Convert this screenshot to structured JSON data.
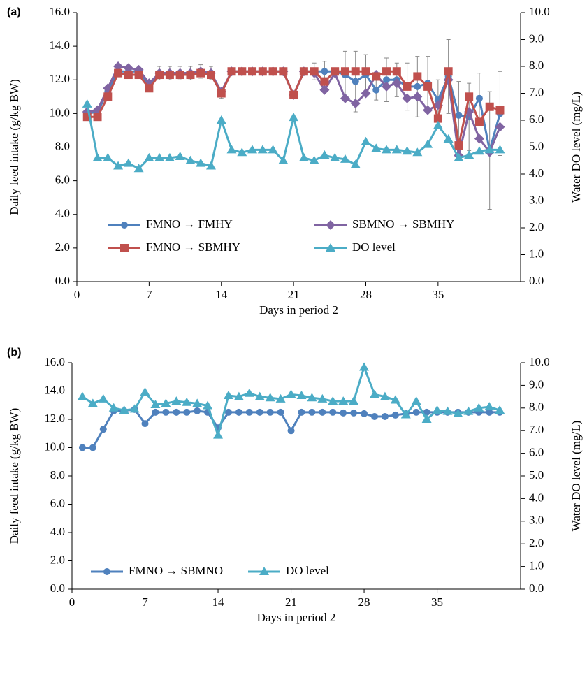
{
  "chart_data": [
    {
      "type": "line",
      "panel_label": "(a)",
      "x_label": "Days in period 2",
      "y_label": "Daily feed intake (g/kg BW)",
      "y2_label": "Water DO level (mg/L)",
      "x": [
        1,
        2,
        3,
        4,
        5,
        6,
        7,
        8,
        9,
        10,
        11,
        12,
        13,
        14,
        15,
        16,
        17,
        18,
        19,
        20,
        21,
        22,
        23,
        24,
        25,
        26,
        27,
        28,
        29,
        30,
        31,
        32,
        33,
        34,
        35,
        36,
        37,
        38,
        39,
        40,
        41
      ],
      "xlim": [
        0,
        43
      ],
      "xticks": [
        0,
        7,
        14,
        21,
        28,
        35
      ],
      "ylim": [
        0,
        16
      ],
      "yticks": [
        {
          "value": 0,
          "label": "0.0"
        },
        {
          "value": 2,
          "label": "2.0"
        },
        {
          "value": 4,
          "label": "4.0"
        },
        {
          "value": 6,
          "label": "6.0"
        },
        {
          "value": 8,
          "label": "8.0"
        },
        {
          "value": 10,
          "label": "10.0"
        },
        {
          "value": 12,
          "label": "12.0"
        },
        {
          "value": 14,
          "label": "14.0"
        },
        {
          "value": 16,
          "label": "16.0"
        }
      ],
      "y2lim": [
        0,
        10
      ],
      "y2ticks": [
        {
          "value": 0,
          "label": "0.0"
        },
        {
          "value": 1,
          "label": "1.0"
        },
        {
          "value": 2,
          "label": "2.0"
        },
        {
          "value": 3,
          "label": "3.0"
        },
        {
          "value": 4,
          "label": "4.0"
        },
        {
          "value": 5,
          "label": "5.0"
        },
        {
          "value": 6,
          "label": "6.0"
        },
        {
          "value": 7,
          "label": "7.0"
        },
        {
          "value": 8,
          "label": "8.0"
        },
        {
          "value": 9,
          "label": "9.0"
        },
        {
          "value": 10,
          "label": "10.0"
        }
      ],
      "series": [
        {
          "name": "FMNO → FMHY",
          "color": "#4f81bd",
          "marker": "circle",
          "values": [
            10.0,
            10.1,
            11.3,
            12.5,
            12.5,
            12.5,
            11.7,
            12.4,
            12.4,
            12.4,
            12.4,
            12.5,
            12.4,
            11.2,
            12.5,
            12.5,
            12.5,
            12.5,
            12.5,
            12.5,
            11.1,
            12.5,
            12.5,
            12.5,
            12.5,
            12.3,
            11.9,
            12.3,
            11.4,
            12.0,
            12.0,
            11.6,
            11.6,
            11.8,
            10.8,
            12.2,
            9.9,
            9.8,
            10.9,
            7.8,
            10.0
          ],
          "errors": [
            0.2,
            0.2,
            0.2,
            0.2,
            0.2,
            0.2,
            0.2,
            0.4,
            0.4,
            0.4,
            0.4,
            0.4,
            0.4,
            0.3,
            0.1,
            0.1,
            0.1,
            0.1,
            0.1,
            0.1,
            0.1,
            0.1,
            0.5,
            0.6,
            0.2,
            1.4,
            1.8,
            1.2,
            0.6,
            1.3,
            1.0,
            1.4,
            1.8,
            1.6,
            1.2,
            2.2,
            2.0,
            2.0,
            1.5,
            3.5,
            2.5
          ]
        },
        {
          "name": "SBMNO → SBMHY",
          "color": "#8064a2",
          "marker": "diamond",
          "values": [
            10.1,
            10.2,
            11.5,
            12.8,
            12.7,
            12.6,
            11.8,
            12.4,
            12.4,
            12.4,
            12.4,
            12.5,
            12.4,
            11.3,
            12.5,
            12.5,
            12.5,
            12.5,
            12.5,
            12.5,
            11.1,
            12.5,
            12.4,
            11.4,
            12.4,
            10.9,
            10.6,
            11.2,
            12.3,
            11.6,
            11.8,
            10.9,
            11.0,
            10.2,
            10.5,
            12.0,
            7.5,
            10.1,
            8.5,
            7.7,
            9.2
          ]
        },
        {
          "name": "FMNO → SBMHY",
          "color": "#c0504d",
          "marker": "square",
          "values": [
            9.8,
            9.8,
            11.0,
            12.4,
            12.3,
            12.3,
            11.5,
            12.3,
            12.3,
            12.3,
            12.3,
            12.4,
            12.3,
            11.2,
            12.5,
            12.5,
            12.5,
            12.5,
            12.5,
            12.5,
            11.1,
            12.5,
            12.5,
            11.9,
            12.5,
            12.5,
            12.5,
            12.5,
            12.2,
            12.5,
            12.5,
            11.6,
            12.2,
            11.6,
            9.7,
            12.5,
            8.1,
            11.0,
            9.5,
            10.4,
            10.2
          ]
        },
        {
          "name": "DO level",
          "color": "#4bacc6",
          "marker": "triangle",
          "axis": "y2",
          "values": [
            6.6,
            4.6,
            4.6,
            4.3,
            4.4,
            4.2,
            4.6,
            4.6,
            4.6,
            4.65,
            4.5,
            4.4,
            4.3,
            6.0,
            4.9,
            4.8,
            4.9,
            4.9,
            4.9,
            4.5,
            6.1,
            4.6,
            4.5,
            4.7,
            4.6,
            4.55,
            4.35,
            5.2,
            4.95,
            4.9,
            4.9,
            4.85,
            4.8,
            5.1,
            5.8,
            5.3,
            4.6,
            4.7,
            4.85,
            4.9,
            4.9
          ]
        }
      ]
    },
    {
      "type": "line",
      "panel_label": "(b)",
      "x_label": "Days in period 2",
      "y_label": "Daily feed intake (g/kg BW)",
      "y2_label": "Water DO level (mg/L)",
      "x": [
        1,
        2,
        3,
        4,
        5,
        6,
        7,
        8,
        9,
        10,
        11,
        12,
        13,
        14,
        15,
        16,
        17,
        18,
        19,
        20,
        21,
        22,
        23,
        24,
        25,
        26,
        27,
        28,
        29,
        30,
        31,
        32,
        33,
        34,
        35,
        36,
        37,
        38,
        39,
        40,
        41
      ],
      "xlim": [
        0,
        43
      ],
      "xticks": [
        0,
        7,
        14,
        21,
        28,
        35
      ],
      "ylim": [
        0,
        16
      ],
      "yticks": [
        {
          "value": 0,
          "label": "0.0"
        },
        {
          "value": 2,
          "label": "2.0"
        },
        {
          "value": 4,
          "label": "4.0"
        },
        {
          "value": 6,
          "label": "6.0"
        },
        {
          "value": 8,
          "label": "8.0"
        },
        {
          "value": 10,
          "label": "10.0"
        },
        {
          "value": 12,
          "label": "12.0"
        },
        {
          "value": 14,
          "label": "14.0"
        },
        {
          "value": 16,
          "label": "16.0"
        }
      ],
      "y2lim": [
        0,
        10
      ],
      "y2ticks": [
        {
          "value": 0,
          "label": "0.0"
        },
        {
          "value": 1,
          "label": "1.0"
        },
        {
          "value": 2,
          "label": "2.0"
        },
        {
          "value": 3,
          "label": "3.0"
        },
        {
          "value": 4,
          "label": "4.0"
        },
        {
          "value": 5,
          "label": "5.0"
        },
        {
          "value": 6,
          "label": "6.0"
        },
        {
          "value": 7,
          "label": "7.0"
        },
        {
          "value": 8,
          "label": "8.0"
        },
        {
          "value": 9,
          "label": "9.0"
        },
        {
          "value": 10,
          "label": "10.0"
        }
      ],
      "series": [
        {
          "name": "FMNO → SBMNO",
          "color": "#4f81bd",
          "marker": "circle",
          "values": [
            10.0,
            10.0,
            11.3,
            12.6,
            12.6,
            12.7,
            11.7,
            12.5,
            12.5,
            12.5,
            12.5,
            12.6,
            12.5,
            11.4,
            12.5,
            12.5,
            12.5,
            12.5,
            12.5,
            12.5,
            11.2,
            12.5,
            12.5,
            12.5,
            12.5,
            12.45,
            12.45,
            12.4,
            12.2,
            12.2,
            12.3,
            12.4,
            12.5,
            12.5,
            12.5,
            12.5,
            12.5,
            12.5,
            12.5,
            12.5,
            12.5
          ]
        },
        {
          "name": "DO level",
          "color": "#4bacc6",
          "marker": "triangle",
          "axis": "y2",
          "values": [
            8.5,
            8.2,
            8.4,
            8.0,
            7.9,
            7.95,
            8.7,
            8.15,
            8.2,
            8.3,
            8.25,
            8.2,
            8.1,
            6.8,
            8.55,
            8.5,
            8.65,
            8.5,
            8.45,
            8.4,
            8.6,
            8.55,
            8.45,
            8.4,
            8.3,
            8.3,
            8.3,
            9.8,
            8.6,
            8.5,
            8.35,
            7.7,
            8.3,
            7.5,
            7.9,
            7.85,
            7.75,
            7.85,
            8.0,
            8.05,
            7.9
          ]
        }
      ]
    }
  ]
}
